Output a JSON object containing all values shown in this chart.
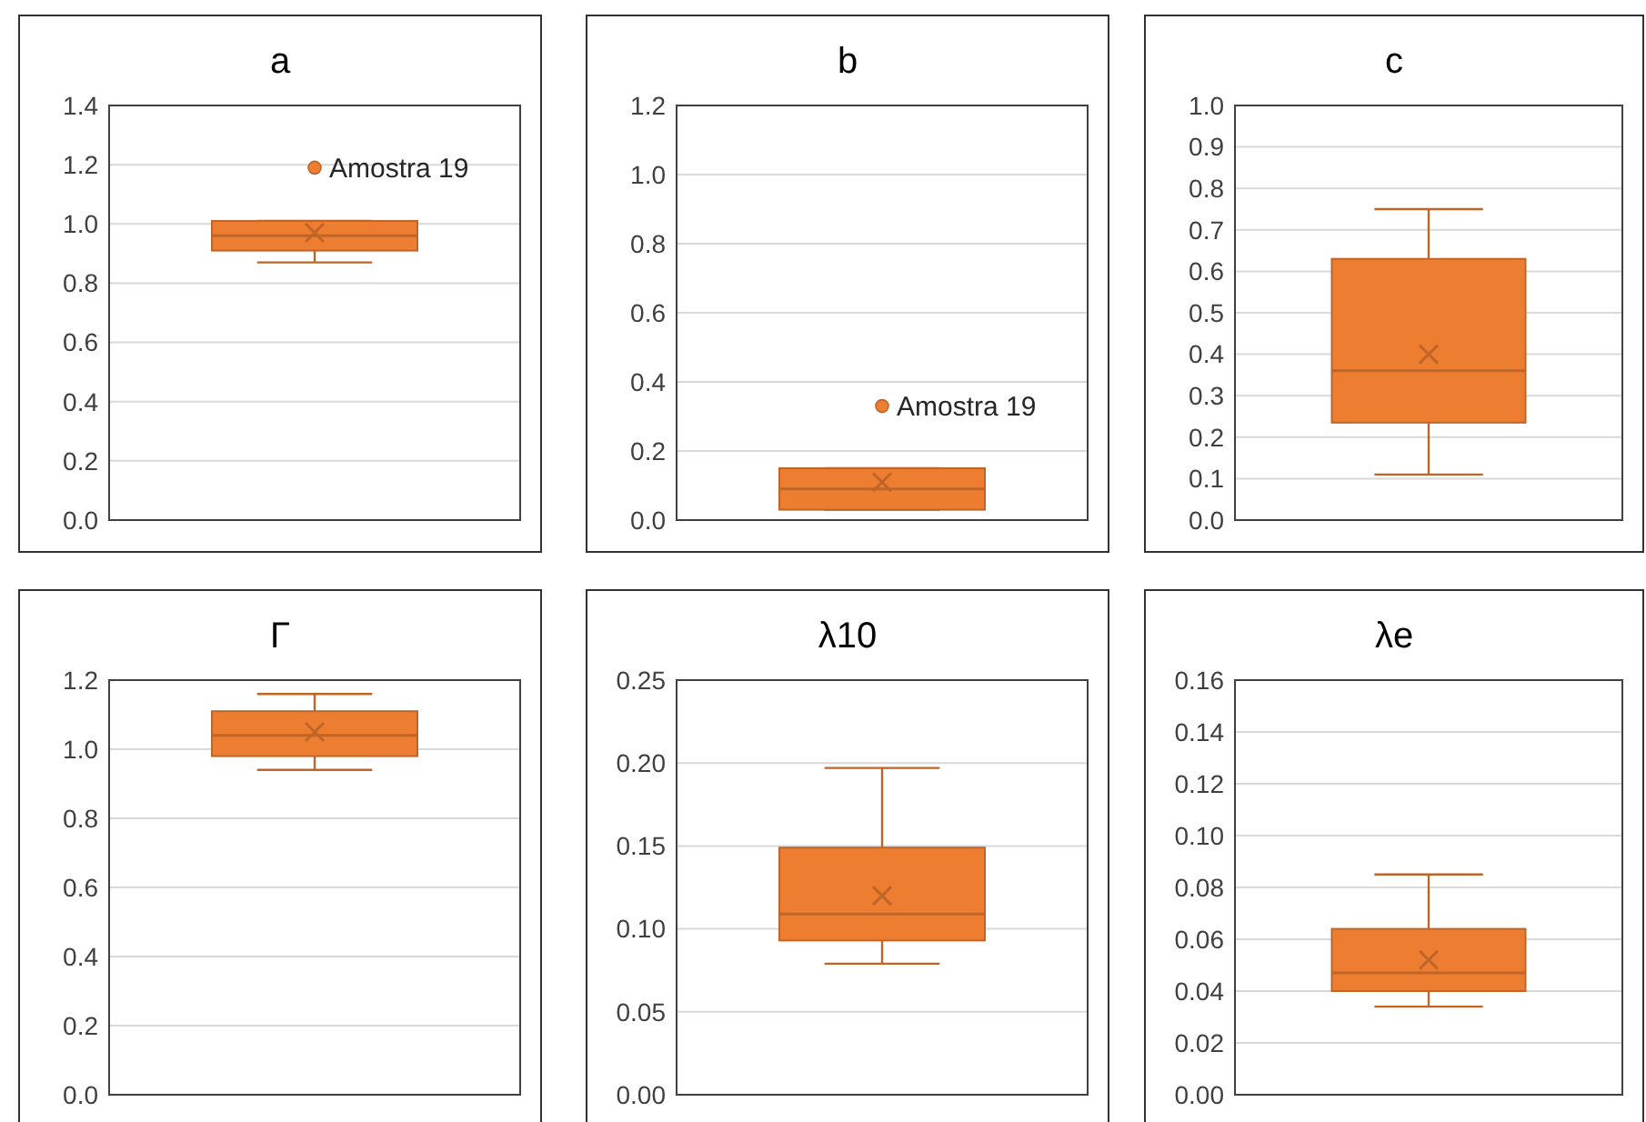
{
  "chart_data": [
    {
      "type": "box",
      "title": "a",
      "categories": [
        null
      ],
      "color": "#ed7d31",
      "boxes": [
        {
          "low": 0.87,
          "q1": 0.91,
          "median": 0.96,
          "q3": 1.01,
          "high": 1.01,
          "mean": 0.97,
          "outliers": [
            1.19
          ]
        }
      ],
      "ylim": [
        0,
        1.4
      ],
      "yticks": [
        {
          "value": 0,
          "label": "0.0"
        },
        0.2,
        0.4,
        0.6,
        0.8,
        {
          "value": 1,
          "label": "1.0"
        },
        1.2,
        1.4
      ],
      "grid": "y",
      "annotations": [
        "Amostra 19"
      ]
    },
    {
      "type": "box",
      "title": "b",
      "categories": [
        null
      ],
      "color": "#ed7d31",
      "boxes": [
        {
          "low": 0.03,
          "q1": 0.03,
          "median": 0.09,
          "q3": 0.15,
          "high": 0.15,
          "mean": 0.11,
          "outliers": [
            0.33
          ]
        }
      ],
      "ylim": [
        0,
        1.2
      ],
      "yticks": [
        {
          "value": 0,
          "label": "0.0"
        },
        0.2,
        0.4,
        0.6,
        0.8,
        {
          "value": 1,
          "label": "1.0"
        },
        1.2
      ],
      "grid": "y",
      "annotations": [
        "Amostra 19"
      ]
    },
    {
      "type": "box",
      "title": "c",
      "categories": [
        null
      ],
      "color": "#ed7d31",
      "boxes": [
        {
          "low": 0.11,
          "q1": 0.235,
          "median": 0.36,
          "q3": 0.63,
          "high": 0.75,
          "mean": 0.4
        }
      ],
      "ylim": [
        0,
        1
      ],
      "yticks": [
        {
          "value": 0,
          "label": "0.0"
        },
        0.1,
        0.2,
        0.3,
        0.4,
        0.5,
        0.6,
        0.7,
        0.8,
        0.9,
        {
          "value": 1,
          "label": "1.0"
        }
      ],
      "grid": "y"
    },
    {
      "type": "box",
      "title": "Γ",
      "categories": [
        null
      ],
      "color": "#ed7d31",
      "boxes": [
        {
          "low": 0.94,
          "q1": 0.98,
          "median": 1.04,
          "q3": 1.11,
          "high": 1.16,
          "mean": 1.05
        }
      ],
      "ylim": [
        0,
        1.2
      ],
      "yticks": [
        {
          "value": 0,
          "label": "0.0"
        },
        0.2,
        0.4,
        0.6,
        0.8,
        {
          "value": 1,
          "label": "1.0"
        },
        1.2
      ],
      "grid": "y"
    },
    {
      "type": "box",
      "title": "λ10",
      "categories": [
        null
      ],
      "color": "#ed7d31",
      "boxes": [
        {
          "low": 0.079,
          "q1": 0.093,
          "median": 0.109,
          "q3": 0.149,
          "high": 0.197,
          "mean": 0.12
        }
      ],
      "ylim": [
        0,
        0.25
      ],
      "yticks": [
        {
          "value": 0,
          "label": "0.00"
        },
        0.05,
        {
          "value": 0.1,
          "label": "0.10"
        },
        0.15,
        {
          "value": 0.2,
          "label": "0.20"
        },
        0.25
      ],
      "grid": "y"
    },
    {
      "type": "box",
      "title": "λe",
      "categories": [
        null
      ],
      "color": "#ed7d31",
      "boxes": [
        {
          "low": 0.034,
          "q1": 0.04,
          "median": 0.047,
          "q3": 0.064,
          "high": 0.085,
          "mean": 0.052
        }
      ],
      "ylim": [
        0,
        0.16
      ],
      "yticks": [
        {
          "value": 0,
          "label": "0.00"
        },
        0.02,
        0.04,
        0.06,
        0.08,
        {
          "value": 0.1,
          "label": "0.10"
        },
        0.12,
        0.14,
        0.16
      ],
      "grid": "y"
    }
  ]
}
